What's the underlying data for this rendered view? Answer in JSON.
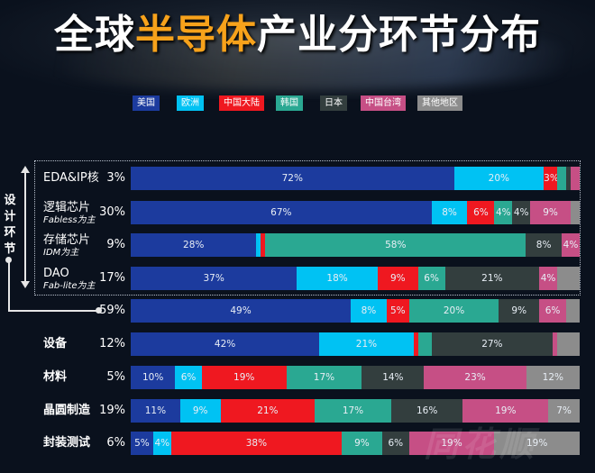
{
  "title": {
    "part1": "全球",
    "highlight": "半导体",
    "part2": "产业分环节分布"
  },
  "design_bracket_label": "设计环节",
  "watermark": "同花顺",
  "chart_data": {
    "type": "bar",
    "stacked": true,
    "orientation": "horizontal",
    "title": "全球半导体产业分环节分布",
    "unit": "%",
    "legend_position": "top",
    "series": [
      {
        "name": "美国",
        "color": "#1c3b9e"
      },
      {
        "name": "欧洲",
        "color": "#00c2f3"
      },
      {
        "name": "中国大陆",
        "color": "#ef1820"
      },
      {
        "name": "韩国",
        "color": "#2aa892"
      },
      {
        "name": "日本",
        "color": "#333e3e"
      },
      {
        "name": "中国台湾",
        "color": "#c64f85"
      },
      {
        "name": "其他地区",
        "color": "#8c8c8c"
      }
    ],
    "rows": [
      {
        "name": "EDA&IP核",
        "sub": "",
        "share": "3%",
        "group": "design",
        "values": [
          72,
          20,
          3,
          2,
          1,
          2,
          0
        ],
        "labels": [
          "72%",
          "20%",
          "3%",
          "",
          "",
          "",
          ""
        ]
      },
      {
        "name": "逻辑芯片",
        "sub": "Fabless为主",
        "share": "30%",
        "group": "design",
        "values": [
          67,
          8,
          6,
          4,
          4,
          9,
          2
        ],
        "labels": [
          "67%",
          "8%",
          "6%",
          "4%",
          "4%",
          "9%",
          ""
        ]
      },
      {
        "name": "存储芯片",
        "sub": "IDM为主",
        "share": "9%",
        "group": "design",
        "values": [
          28,
          1,
          1,
          58,
          8,
          4,
          0
        ],
        "labels": [
          "28%",
          "",
          "",
          "58%",
          "8%",
          "4%",
          ""
        ]
      },
      {
        "name": "DAO",
        "sub": "Fab-lite为主",
        "share": "17%",
        "group": "design",
        "values": [
          37,
          18,
          9,
          6,
          21,
          4,
          5
        ],
        "labels": [
          "37%",
          "18%",
          "9%",
          "6%",
          "21%",
          "4%",
          ""
        ]
      },
      {
        "name": "",
        "sub": "",
        "share": "59%",
        "group": "design-total",
        "values": [
          49,
          8,
          5,
          20,
          9,
          6,
          3
        ],
        "labels": [
          "49%",
          "8%",
          "5%",
          "20%",
          "9%",
          "6%",
          ""
        ]
      },
      {
        "name": "设备",
        "sub": "",
        "share": "12%",
        "group": "",
        "values": [
          42,
          21,
          1,
          3,
          27,
          1,
          5
        ],
        "labels": [
          "42%",
          "21%",
          "",
          "",
          "27%",
          "",
          ""
        ]
      },
      {
        "name": "材料",
        "sub": "",
        "share": "5%",
        "group": "",
        "values": [
          10,
          6,
          19,
          17,
          14,
          23,
          12
        ],
        "labels": [
          "10%",
          "6%",
          "19%",
          "17%",
          "14%",
          "23%",
          "12%"
        ]
      },
      {
        "name": "晶圆制造",
        "sub": "",
        "share": "19%",
        "group": "",
        "values": [
          11,
          9,
          21,
          17,
          16,
          19,
          7
        ],
        "labels": [
          "11%",
          "9%",
          "21%",
          "17%",
          "16%",
          "19%",
          "7%"
        ]
      },
      {
        "name": "封装测试",
        "sub": "",
        "share": "6%",
        "group": "",
        "values": [
          5,
          4,
          38,
          9,
          6,
          19,
          19
        ],
        "labels": [
          "5%",
          "4%",
          "38%",
          "9%",
          "6%",
          "19%",
          "19%"
        ]
      }
    ]
  }
}
